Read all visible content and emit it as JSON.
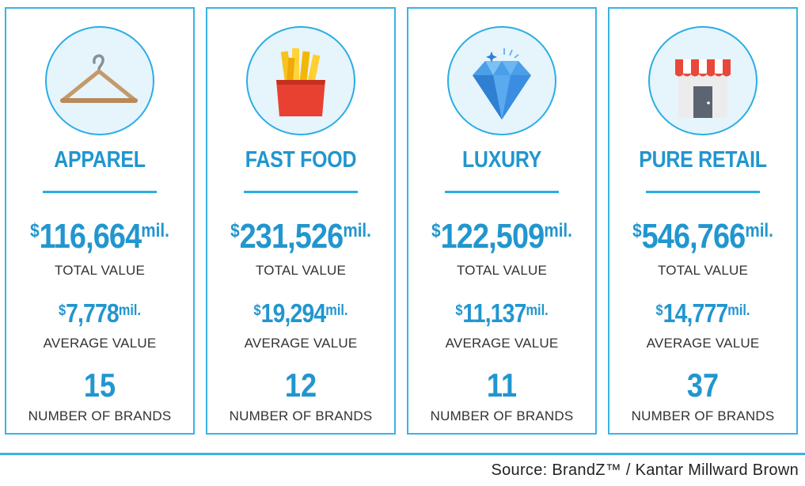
{
  "colors": {
    "accent": "#2196cf",
    "border": "#3ab3e6",
    "icon_bg": "#e6f4fb"
  },
  "cards": [
    {
      "icon": "hanger-icon",
      "category": "APPAREL",
      "total_currency": "$",
      "total_value": "116,664",
      "total_unit": "mil.",
      "total_label": "TOTAL VALUE",
      "avg_currency": "$",
      "avg_value": "7,778",
      "avg_unit": "mil.",
      "avg_label": "AVERAGE VALUE",
      "brand_count": "15",
      "brand_label": "NUMBER OF BRANDS"
    },
    {
      "icon": "french-fries-icon",
      "category": "FAST FOOD",
      "total_currency": "$",
      "total_value": "231,526",
      "total_unit": "mil.",
      "total_label": "TOTAL VALUE",
      "avg_currency": "$",
      "avg_value": "19,294",
      "avg_unit": "mil.",
      "avg_label": "AVERAGE VALUE",
      "brand_count": "12",
      "brand_label": "NUMBER OF BRANDS"
    },
    {
      "icon": "diamond-icon",
      "category": "LUXURY",
      "total_currency": "$",
      "total_value": "122,509",
      "total_unit": "mil.",
      "total_label": "TOTAL VALUE",
      "avg_currency": "$",
      "avg_value": "11,137",
      "avg_unit": "mil.",
      "avg_label": "AVERAGE VALUE",
      "brand_count": "11",
      "brand_label": "NUMBER OF BRANDS"
    },
    {
      "icon": "storefront-icon",
      "category": "PURE RETAIL",
      "total_currency": "$",
      "total_value": "546,766",
      "total_unit": "mil.",
      "total_label": "TOTAL VALUE",
      "avg_currency": "$",
      "avg_value": "14,777",
      "avg_unit": "mil.",
      "avg_label": "AVERAGE VALUE",
      "brand_count": "37",
      "brand_label": "NUMBER OF BRANDS"
    }
  ],
  "footer": {
    "source": "Source: BrandZ™ / Kantar Millward Brown"
  }
}
